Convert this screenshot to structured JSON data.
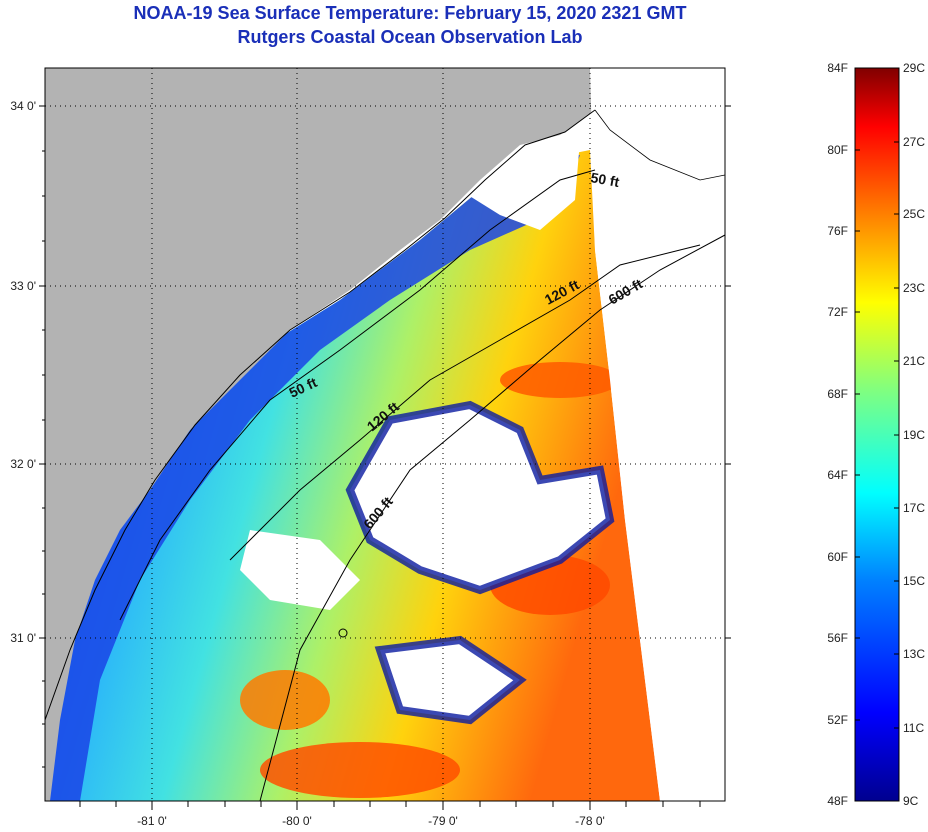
{
  "header": {
    "title": "NOAA-19 Sea Surface Temperature:  February 15, 2020 2321 GMT",
    "subtitle": "Rutgers Coastal Ocean Observation Lab"
  },
  "map": {
    "lon_labels": [
      "-81 0'",
      "-80 0'",
      "-79 0'",
      "-78 0'"
    ],
    "lat_labels": [
      "34 0'",
      "33 0'",
      "32 0'",
      "31 0'"
    ],
    "contours": [
      {
        "label": "50 ft"
      },
      {
        "label": "120 ft"
      },
      {
        "label": "600 ft"
      },
      {
        "label": "50 ft"
      },
      {
        "label": "120 ft"
      },
      {
        "label": "600 ft"
      }
    ],
    "colors": {
      "land": "#b3b3b3",
      "cloud": "#ffffff",
      "frame": "#000000"
    }
  },
  "colorbar": {
    "fahrenheit": [
      "84F",
      "80F",
      "76F",
      "72F",
      "68F",
      "64F",
      "60F",
      "56F",
      "52F",
      "48F"
    ],
    "celsius": [
      "29C",
      "27C",
      "25C",
      "23C",
      "21C",
      "19C",
      "17C",
      "15C",
      "13C",
      "11C",
      "9C"
    ],
    "gradient": [
      "#00008f",
      "#0000ff",
      "#0080ff",
      "#00ffff",
      "#80ff80",
      "#ffff00",
      "#ff8000",
      "#ff0000",
      "#800000"
    ]
  }
}
